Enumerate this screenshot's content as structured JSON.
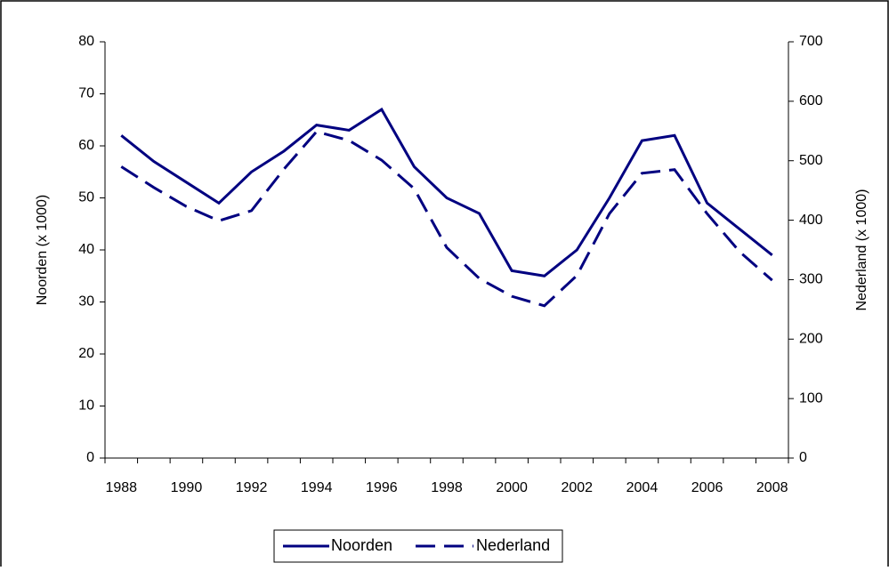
{
  "chart_data": {
    "type": "line",
    "categories": [
      "1988",
      null,
      "1990",
      null,
      "1992",
      null,
      "1994",
      null,
      "1996",
      null,
      "1998",
      null,
      "2000",
      null,
      "2002",
      null,
      "2004",
      null,
      "2006",
      null,
      "2008"
    ],
    "series": [
      {
        "name": "Noorden",
        "color": "#000080",
        "dash": "solid",
        "values": [
          62,
          57,
          53,
          49,
          55,
          59,
          64,
          63,
          67,
          56,
          50,
          47,
          36,
          35,
          40,
          50,
          61,
          62,
          49,
          44,
          39
        ]
      },
      {
        "name": "Nederland",
        "color": "#000080",
        "dash": "dashed",
        "axis": "y2",
        "values": [
          490,
          455,
          423,
          399,
          416,
          486,
          549,
          534,
          501,
          453,
          354,
          302,
          272,
          256,
          307,
          411,
          479,
          485,
          411,
          347,
          299
        ]
      }
    ],
    "ylabel": "Noorden (x 1000)",
    "y2label": "Nederland (x 1000)",
    "ylim": [
      0,
      80
    ],
    "yticks": [
      0,
      10,
      20,
      30,
      40,
      50,
      60,
      70,
      80
    ],
    "y2lim": [
      0,
      700
    ],
    "y2ticks": [
      0,
      100,
      200,
      300,
      400,
      500,
      600,
      700
    ],
    "legend": "bottom"
  }
}
